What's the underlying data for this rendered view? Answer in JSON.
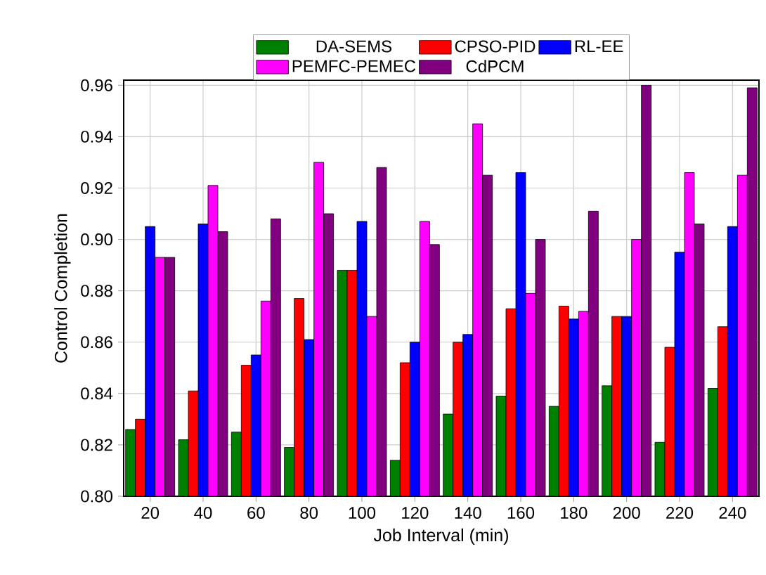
{
  "chart_data": {
    "type": "bar",
    "xlabel": "Job Interval (min)",
    "ylabel": "Control Completion",
    "categories": [
      "20",
      "40",
      "60",
      "80",
      "100",
      "120",
      "140",
      "160",
      "180",
      "200",
      "220",
      "240"
    ],
    "series": [
      {
        "name": "DA-SEMS",
        "color": "#008000",
        "values": [
          0.826,
          0.822,
          0.825,
          0.819,
          0.888,
          0.814,
          0.832,
          0.839,
          0.835,
          0.843,
          0.821,
          0.842
        ]
      },
      {
        "name": "CPSO-PID",
        "color": "#ff0000",
        "values": [
          0.83,
          0.841,
          0.851,
          0.877,
          0.888,
          0.852,
          0.86,
          0.873,
          0.874,
          0.87,
          0.858,
          0.866
        ]
      },
      {
        "name": "RL-EE",
        "color": "#0000ff",
        "values": [
          0.905,
          0.906,
          0.855,
          0.861,
          0.907,
          0.86,
          0.863,
          0.926,
          0.869,
          0.87,
          0.895,
          0.905
        ]
      },
      {
        "name": "PEMFC-PEMEC",
        "color": "#ff00ff",
        "values": [
          0.893,
          0.921,
          0.876,
          0.93,
          0.87,
          0.907,
          0.945,
          0.879,
          0.872,
          0.9,
          0.926,
          0.925
        ]
      },
      {
        "name": "CdPCM",
        "color": "#800080",
        "values": [
          0.893,
          0.903,
          0.908,
          0.91,
          0.928,
          0.898,
          0.925,
          0.9,
          0.911,
          0.96,
          0.906,
          0.959
        ]
      }
    ],
    "ylim": [
      0.8,
      0.962
    ],
    "yticks": [
      {
        "value": 0.8,
        "label": "0.80"
      },
      {
        "value": 0.82,
        "label": "0.82"
      },
      {
        "value": 0.84,
        "label": "0.84"
      },
      {
        "value": 0.86,
        "label": "0.86"
      },
      {
        "value": 0.88,
        "label": "0.88"
      },
      {
        "value": 0.9,
        "label": "0.90"
      },
      {
        "value": 0.92,
        "label": "0.92"
      },
      {
        "value": 0.94,
        "label": "0.94"
      },
      {
        "value": 0.96,
        "label": "0.96"
      }
    ],
    "grid": true,
    "legend": "top"
  }
}
